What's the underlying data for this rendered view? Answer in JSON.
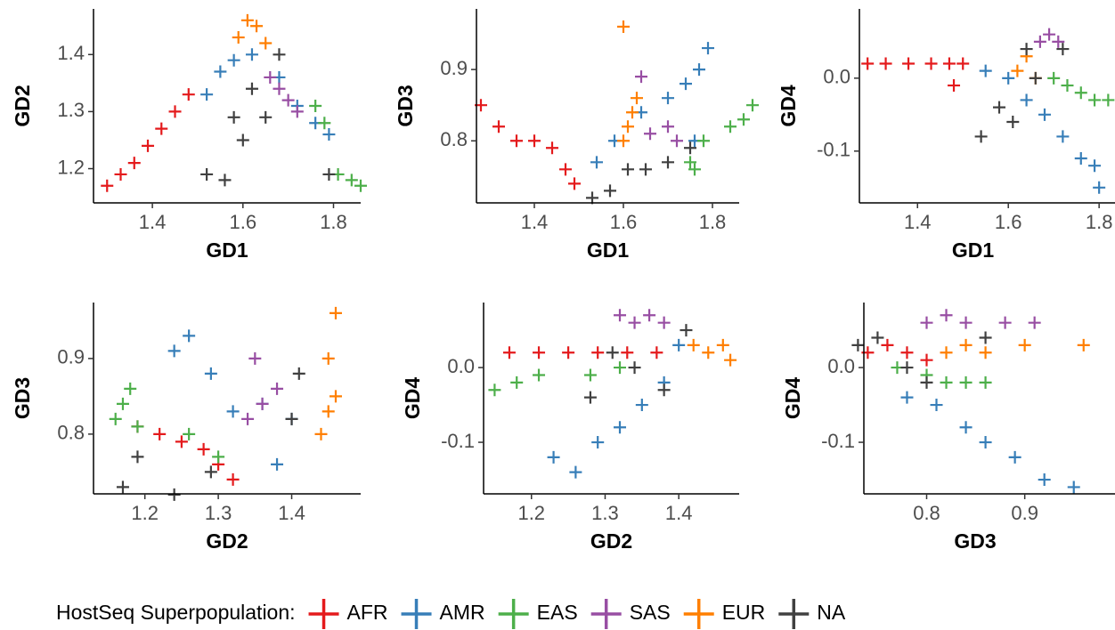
{
  "chart_data": [
    {
      "type": "scatter",
      "xlabel": "GD1",
      "ylabel": "GD2",
      "xlim": [
        1.27,
        1.86
      ],
      "ylim": [
        1.14,
        1.48
      ],
      "xticks": [
        1.4,
        1.6,
        1.8
      ],
      "yticks": [
        1.2,
        1.3,
        1.4
      ],
      "series": [
        {
          "name": "AFR",
          "color": "#e41a1c",
          "x": [
            1.3,
            1.33,
            1.36,
            1.39,
            1.42,
            1.45,
            1.48
          ],
          "y": [
            1.17,
            1.19,
            1.21,
            1.24,
            1.27,
            1.3,
            1.33
          ]
        },
        {
          "name": "AMR",
          "color": "#377eb8",
          "x": [
            1.52,
            1.55,
            1.58,
            1.62,
            1.68,
            1.72,
            1.76,
            1.79
          ],
          "y": [
            1.33,
            1.37,
            1.39,
            1.4,
            1.36,
            1.31,
            1.28,
            1.26
          ]
        },
        {
          "name": "EAS",
          "color": "#4daf4a",
          "x": [
            1.76,
            1.78,
            1.81,
            1.84,
            1.86
          ],
          "y": [
            1.31,
            1.28,
            1.19,
            1.18,
            1.17
          ]
        },
        {
          "name": "SAS",
          "color": "#984ea3",
          "x": [
            1.66,
            1.68,
            1.7,
            1.72
          ],
          "y": [
            1.36,
            1.34,
            1.32,
            1.3
          ]
        },
        {
          "name": "EUR",
          "color": "#ff7f00",
          "x": [
            1.59,
            1.61,
            1.63,
            1.65
          ],
          "y": [
            1.43,
            1.46,
            1.45,
            1.42
          ]
        },
        {
          "name": "NA",
          "color": "#404040",
          "x": [
            1.52,
            1.56,
            1.58,
            1.6,
            1.62,
            1.65,
            1.68,
            1.79
          ],
          "y": [
            1.19,
            1.18,
            1.29,
            1.25,
            1.34,
            1.29,
            1.4,
            1.19
          ]
        }
      ]
    },
    {
      "type": "scatter",
      "xlabel": "GD1",
      "ylabel": "GD3",
      "xlim": [
        1.27,
        1.86
      ],
      "ylim": [
        0.713,
        0.985
      ],
      "xticks": [
        1.4,
        1.6,
        1.8
      ],
      "yticks": [
        0.8,
        0.9
      ],
      "series": [
        {
          "name": "AFR",
          "color": "#e41a1c",
          "x": [
            1.28,
            1.32,
            1.36,
            1.4,
            1.44,
            1.47,
            1.49
          ],
          "y": [
            0.85,
            0.82,
            0.8,
            0.8,
            0.79,
            0.76,
            0.74
          ]
        },
        {
          "name": "AMR",
          "color": "#377eb8",
          "x": [
            1.54,
            1.58,
            1.64,
            1.7,
            1.74,
            1.77,
            1.79,
            1.76
          ],
          "y": [
            0.77,
            0.8,
            0.84,
            0.86,
            0.88,
            0.9,
            0.93,
            0.8
          ]
        },
        {
          "name": "EAS",
          "color": "#4daf4a",
          "x": [
            1.75,
            1.78,
            1.84,
            1.87,
            1.89,
            1.76
          ],
          "y": [
            0.77,
            0.8,
            0.82,
            0.83,
            0.85,
            0.76
          ]
        },
        {
          "name": "SAS",
          "color": "#984ea3",
          "x": [
            1.66,
            1.7,
            1.72,
            1.64
          ],
          "y": [
            0.81,
            0.82,
            0.8,
            0.89
          ]
        },
        {
          "name": "EUR",
          "color": "#ff7f00",
          "x": [
            1.6,
            1.61,
            1.62,
            1.63,
            1.6
          ],
          "y": [
            0.8,
            0.82,
            0.84,
            0.86,
            0.96
          ]
        },
        {
          "name": "NA",
          "color": "#404040",
          "x": [
            1.53,
            1.57,
            1.61,
            1.65,
            1.7,
            1.75
          ],
          "y": [
            0.72,
            0.73,
            0.76,
            0.76,
            0.77,
            0.79
          ]
        }
      ]
    },
    {
      "type": "scatter",
      "xlabel": "GD1",
      "ylabel": "GD4",
      "xlim": [
        1.272,
        1.835
      ],
      "ylim": [
        -0.171,
        0.095
      ],
      "xticks": [
        1.4,
        1.6,
        1.8
      ],
      "yticks": [
        -0.1,
        {
          "value": 0,
          "label": "0.0"
        }
      ],
      "series": [
        {
          "name": "AFR",
          "color": "#e41a1c",
          "x": [
            1.29,
            1.33,
            1.38,
            1.43,
            1.47,
            1.5,
            1.48
          ],
          "y": [
            0.02,
            0.02,
            0.02,
            0.02,
            0.02,
            0.02,
            -0.01
          ]
        },
        {
          "name": "AMR",
          "color": "#377eb8",
          "x": [
            1.55,
            1.6,
            1.64,
            1.68,
            1.72,
            1.76,
            1.79,
            1.8
          ],
          "y": [
            0.01,
            0.0,
            -0.03,
            -0.05,
            -0.08,
            -0.11,
            -0.12,
            -0.15
          ]
        },
        {
          "name": "EAS",
          "color": "#4daf4a",
          "x": [
            1.7,
            1.73,
            1.76,
            1.79,
            1.82
          ],
          "y": [
            0.0,
            -0.01,
            -0.02,
            -0.03,
            -0.03
          ]
        },
        {
          "name": "SAS",
          "color": "#984ea3",
          "x": [
            1.67,
            1.69,
            1.71
          ],
          "y": [
            0.05,
            0.06,
            0.05
          ]
        },
        {
          "name": "EUR",
          "color": "#ff7f00",
          "x": [
            1.62,
            1.64,
            1.66
          ],
          "y": [
            0.01,
            0.03,
            0.0
          ]
        },
        {
          "name": "NA",
          "color": "#404040",
          "x": [
            1.54,
            1.58,
            1.61,
            1.64,
            1.66,
            1.72
          ],
          "y": [
            -0.08,
            -0.04,
            -0.06,
            0.04,
            0.0,
            0.04
          ]
        }
      ]
    },
    {
      "type": "scatter",
      "xlabel": "GD2",
      "ylabel": "GD3",
      "xlim": [
        1.13,
        1.494
      ],
      "ylim": [
        0.721,
        0.974
      ],
      "xticks": [
        1.2,
        1.3,
        1.4
      ],
      "yticks": [
        0.8,
        0.9
      ],
      "series": [
        {
          "name": "AFR",
          "color": "#e41a1c",
          "x": [
            1.19,
            1.22,
            1.25,
            1.28,
            1.3,
            1.32
          ],
          "y": [
            0.81,
            0.8,
            0.79,
            0.78,
            0.76,
            0.74
          ]
        },
        {
          "name": "AMR",
          "color": "#377eb8",
          "x": [
            1.24,
            1.26,
            1.29,
            1.32,
            1.36,
            1.4,
            1.38
          ],
          "y": [
            0.91,
            0.93,
            0.88,
            0.83,
            0.84,
            0.82,
            0.76
          ]
        },
        {
          "name": "EAS",
          "color": "#4daf4a",
          "x": [
            1.16,
            1.17,
            1.18,
            1.19,
            1.26,
            1.3
          ],
          "y": [
            0.82,
            0.84,
            0.86,
            0.81,
            0.8,
            0.77
          ]
        },
        {
          "name": "SAS",
          "color": "#984ea3",
          "x": [
            1.34,
            1.36,
            1.38,
            1.35
          ],
          "y": [
            0.82,
            0.84,
            0.86,
            0.9
          ]
        },
        {
          "name": "EUR",
          "color": "#ff7f00",
          "x": [
            1.44,
            1.45,
            1.46,
            1.45,
            1.46
          ],
          "y": [
            0.8,
            0.83,
            0.85,
            0.9,
            0.96
          ]
        },
        {
          "name": "NA",
          "color": "#404040",
          "x": [
            1.17,
            1.19,
            1.24,
            1.29,
            1.41,
            1.4
          ],
          "y": [
            0.73,
            0.77,
            0.72,
            0.75,
            0.88,
            0.82
          ]
        }
      ]
    },
    {
      "type": "scatter",
      "xlabel": "GD2",
      "ylabel": "GD4",
      "xlim": [
        1.135,
        1.482
      ],
      "ylim": [
        -0.169,
        0.087
      ],
      "xticks": [
        1.2,
        1.3,
        1.4
      ],
      "yticks": [
        -0.1,
        {
          "value": 0,
          "label": "0.0"
        }
      ],
      "series": [
        {
          "name": "AFR",
          "color": "#e41a1c",
          "x": [
            1.17,
            1.21,
            1.25,
            1.29,
            1.33,
            1.37
          ],
          "y": [
            0.02,
            0.02,
            0.02,
            0.02,
            0.02,
            0.02
          ]
        },
        {
          "name": "AMR",
          "color": "#377eb8",
          "x": [
            1.23,
            1.26,
            1.29,
            1.32,
            1.35,
            1.38,
            1.4
          ],
          "y": [
            -0.12,
            -0.14,
            -0.1,
            -0.08,
            -0.05,
            -0.02,
            0.03
          ]
        },
        {
          "name": "EAS",
          "color": "#4daf4a",
          "x": [
            1.15,
            1.18,
            1.21,
            1.28,
            1.32
          ],
          "y": [
            -0.03,
            -0.02,
            -0.01,
            -0.01,
            0.0
          ]
        },
        {
          "name": "SAS",
          "color": "#984ea3",
          "x": [
            1.32,
            1.34,
            1.36,
            1.38
          ],
          "y": [
            0.07,
            0.06,
            0.07,
            0.06
          ]
        },
        {
          "name": "EUR",
          "color": "#ff7f00",
          "x": [
            1.42,
            1.44,
            1.46,
            1.47
          ],
          "y": [
            0.03,
            0.02,
            0.03,
            0.01
          ]
        },
        {
          "name": "NA",
          "color": "#404040",
          "x": [
            1.28,
            1.31,
            1.34,
            1.38,
            1.41
          ],
          "y": [
            -0.04,
            0.02,
            0.0,
            -0.03,
            0.05
          ]
        }
      ]
    },
    {
      "type": "scatter",
      "xlabel": "GD3",
      "ylabel": "GD4",
      "xlim": [
        0.736,
        0.992
      ],
      "ylim": [
        -0.169,
        0.087
      ],
      "xticks": [
        0.8,
        0.9
      ],
      "yticks": [
        -0.1,
        {
          "value": 0,
          "label": "0.0"
        }
      ],
      "series": [
        {
          "name": "AFR",
          "color": "#e41a1c",
          "x": [
            0.74,
            0.76,
            0.78,
            0.8
          ],
          "y": [
            0.02,
            0.03,
            0.02,
            0.01
          ]
        },
        {
          "name": "AMR",
          "color": "#377eb8",
          "x": [
            0.78,
            0.81,
            0.84,
            0.86,
            0.89,
            0.92,
            0.95
          ],
          "y": [
            -0.04,
            -0.05,
            -0.08,
            -0.1,
            -0.12,
            -0.15,
            -0.16
          ]
        },
        {
          "name": "EAS",
          "color": "#4daf4a",
          "x": [
            0.77,
            0.8,
            0.82,
            0.84,
            0.86
          ],
          "y": [
            0.0,
            -0.01,
            -0.02,
            -0.02,
            -0.02
          ]
        },
        {
          "name": "SAS",
          "color": "#984ea3",
          "x": [
            0.8,
            0.82,
            0.84,
            0.88,
            0.91
          ],
          "y": [
            0.06,
            0.07,
            0.06,
            0.06,
            0.06
          ]
        },
        {
          "name": "EUR",
          "color": "#ff7f00",
          "x": [
            0.82,
            0.84,
            0.86,
            0.9,
            0.96
          ],
          "y": [
            0.02,
            0.03,
            0.02,
            0.03,
            0.03
          ]
        },
        {
          "name": "NA",
          "color": "#404040",
          "x": [
            0.73,
            0.75,
            0.78,
            0.8,
            0.86
          ],
          "y": [
            0.03,
            0.04,
            0.0,
            -0.02,
            0.04
          ]
        }
      ]
    }
  ],
  "legend": {
    "title": "HostSeq Superpopulation:"
  }
}
